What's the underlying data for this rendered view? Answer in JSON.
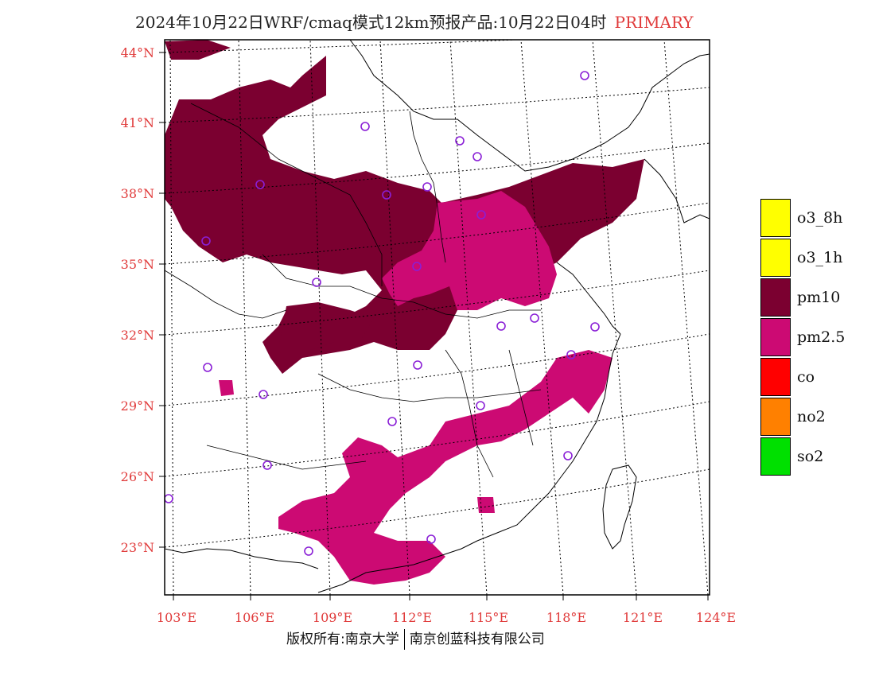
{
  "title": {
    "text": "2024年10月22日WRF/cmaq模式12km预报产品:10月22日04时",
    "tag": "PRIMARY",
    "tag_color": "#e03a3a"
  },
  "axes": {
    "lat_labels": [
      "44°N",
      "41°N",
      "38°N",
      "35°N",
      "32°N",
      "29°N",
      "26°N",
      "23°N"
    ],
    "lon_labels": [
      "103°E",
      "106°E",
      "109°E",
      "112°E",
      "115°E",
      "118°E",
      "121°E",
      "124°E"
    ],
    "label_color": "#e03a3a"
  },
  "legend": [
    {
      "label": "o3_8h",
      "color": "#ffff00"
    },
    {
      "label": "o3_1h",
      "color": "#ffff00"
    },
    {
      "label": "pm10",
      "color": "#7b0030"
    },
    {
      "label": "pm2.5",
      "color": "#cc0a73"
    },
    {
      "label": "co",
      "color": "#ff0000"
    },
    {
      "label": "no2",
      "color": "#ff8000"
    },
    {
      "label": "so2",
      "color": "#00e000"
    }
  ],
  "map": {
    "pollutant_colors": {
      "pm10": "#7b0030",
      "pm25": "#cc0a73"
    },
    "station_marker_color": "#8a1fd6"
  },
  "footer": {
    "left": "版权所有:南京大学",
    "right": "南京创蓝科技有限公司"
  }
}
